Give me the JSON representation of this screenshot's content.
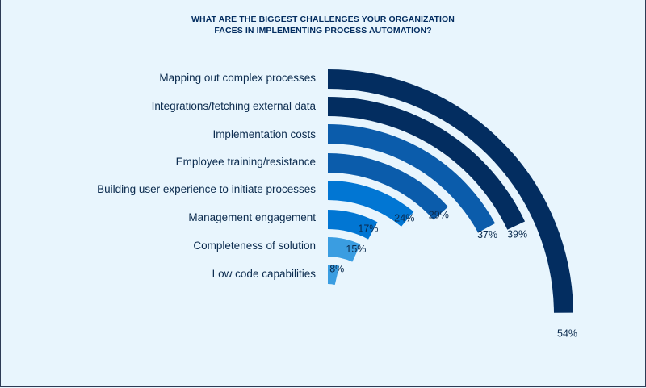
{
  "title_lines": [
    "WHAT ARE THE BIGGEST CHALLENGES YOUR ORGANIZATION",
    "FACES IN IMPLEMENTING PROCESS AUTOMATION?"
  ],
  "chart_data": {
    "type": "bar",
    "style": "radial-quarter-arc",
    "title": "WHAT ARE THE BIGGEST CHALLENGES YOUR ORGANIZATION FACES IN IMPLEMENTING PROCESS AUTOMATION?",
    "categories": [
      "Mapping out complex processes",
      "Integrations/fetching external data",
      "Implementation costs",
      "Employee training/resistance",
      "Building user experience to initiate processes",
      "Management engagement",
      "Completeness of solution",
      "Low code capabilities"
    ],
    "values": [
      54,
      39,
      37,
      29,
      24,
      17,
      15,
      8
    ],
    "value_labels": [
      "54%",
      "39%",
      "37%",
      "29%",
      "24%",
      "17%",
      "15%",
      "8%"
    ],
    "colors": [
      "#032d60",
      "#032d60",
      "#0b5cab",
      "#0b5cab",
      "#0176d3",
      "#0176d3",
      "#3a9de1",
      "#3a9de1"
    ],
    "xlabel": "",
    "ylabel": ""
  }
}
